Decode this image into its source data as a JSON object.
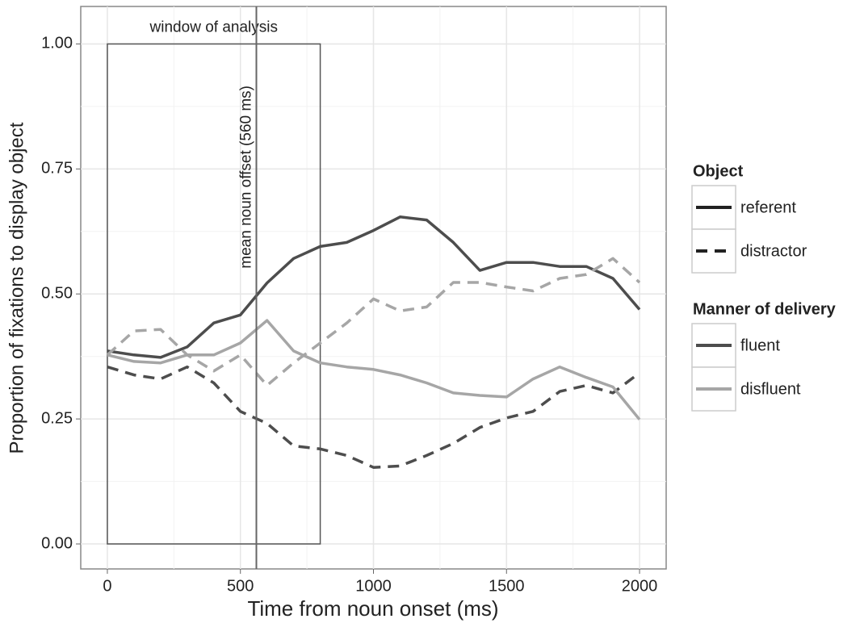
{
  "chart_data": {
    "type": "line",
    "xlabel": "Time from noun onset (ms)",
    "ylabel": "Proportion of fixations to display object",
    "x": [
      0,
      100,
      200,
      300,
      400,
      500,
      600,
      700,
      800,
      900,
      1000,
      1100,
      1200,
      1300,
      1400,
      1500,
      1600,
      1700,
      1800,
      1900,
      2000
    ],
    "series": [
      {
        "color": "#4d4d4d",
        "dashed": false,
        "values": [
          0.386,
          0.378,
          0.373,
          0.394,
          0.442,
          0.458,
          0.522,
          0.571,
          0.595,
          0.603,
          0.627,
          0.654,
          0.648,
          0.603,
          0.547,
          0.563,
          0.563,
          0.555,
          0.555,
          0.531,
          0.469
        ]
      },
      {
        "color": "#4d4d4d",
        "dashed": true,
        "values": [
          0.354,
          0.338,
          0.33,
          0.354,
          0.322,
          0.265,
          0.241,
          0.196,
          0.19,
          0.177,
          0.153,
          0.156,
          0.177,
          0.201,
          0.233,
          0.252,
          0.265,
          0.305,
          0.317,
          0.302,
          0.342
        ]
      },
      {
        "color": "#a6a6a6",
        "dashed": false,
        "values": [
          0.378,
          0.365,
          0.362,
          0.378,
          0.378,
          0.402,
          0.447,
          0.386,
          0.362,
          0.354,
          0.349,
          0.338,
          0.322,
          0.302,
          0.297,
          0.294,
          0.33,
          0.354,
          0.333,
          0.314,
          0.249
        ]
      },
      {
        "color": "#a6a6a6",
        "dashed": true,
        "values": [
          0.378,
          0.426,
          0.429,
          0.378,
          0.346,
          0.378,
          0.317,
          0.362,
          0.402,
          0.442,
          0.49,
          0.466,
          0.474,
          0.523,
          0.523,
          0.514,
          0.506,
          0.531,
          0.539,
          0.571,
          0.523
        ]
      }
    ],
    "xlim": [
      -100,
      2100
    ],
    "ylim": [
      -0.05,
      1.075
    ],
    "xticks": [
      0,
      500,
      1000,
      1500,
      2000
    ],
    "yticks": [
      {
        "value": 0,
        "label": "0.00"
      },
      {
        "value": 0.25,
        "label": "0.25"
      },
      {
        "value": 0.5,
        "label": "0.50"
      },
      {
        "value": 0.75,
        "label": "0.75"
      },
      {
        "value": 1,
        "label": "1.00"
      }
    ],
    "grid": true,
    "window": {
      "label": "window of analysis",
      "x": [
        0,
        800
      ],
      "y": [
        0,
        1
      ]
    },
    "vline": {
      "x": 560,
      "label": "mean noun offset (560 ms)"
    },
    "legends": [
      {
        "title": "Object",
        "entries": [
          {
            "label": "referent",
            "dashed": false,
            "color": "#222222"
          },
          {
            "label": "distractor",
            "dashed": true,
            "color": "#222222"
          }
        ]
      },
      {
        "title": "Manner of delivery",
        "entries": [
          {
            "label": "fluent",
            "dashed": false,
            "color": "#4d4d4d"
          },
          {
            "label": "disfluent",
            "dashed": false,
            "color": "#a6a6a6"
          }
        ]
      }
    ]
  }
}
